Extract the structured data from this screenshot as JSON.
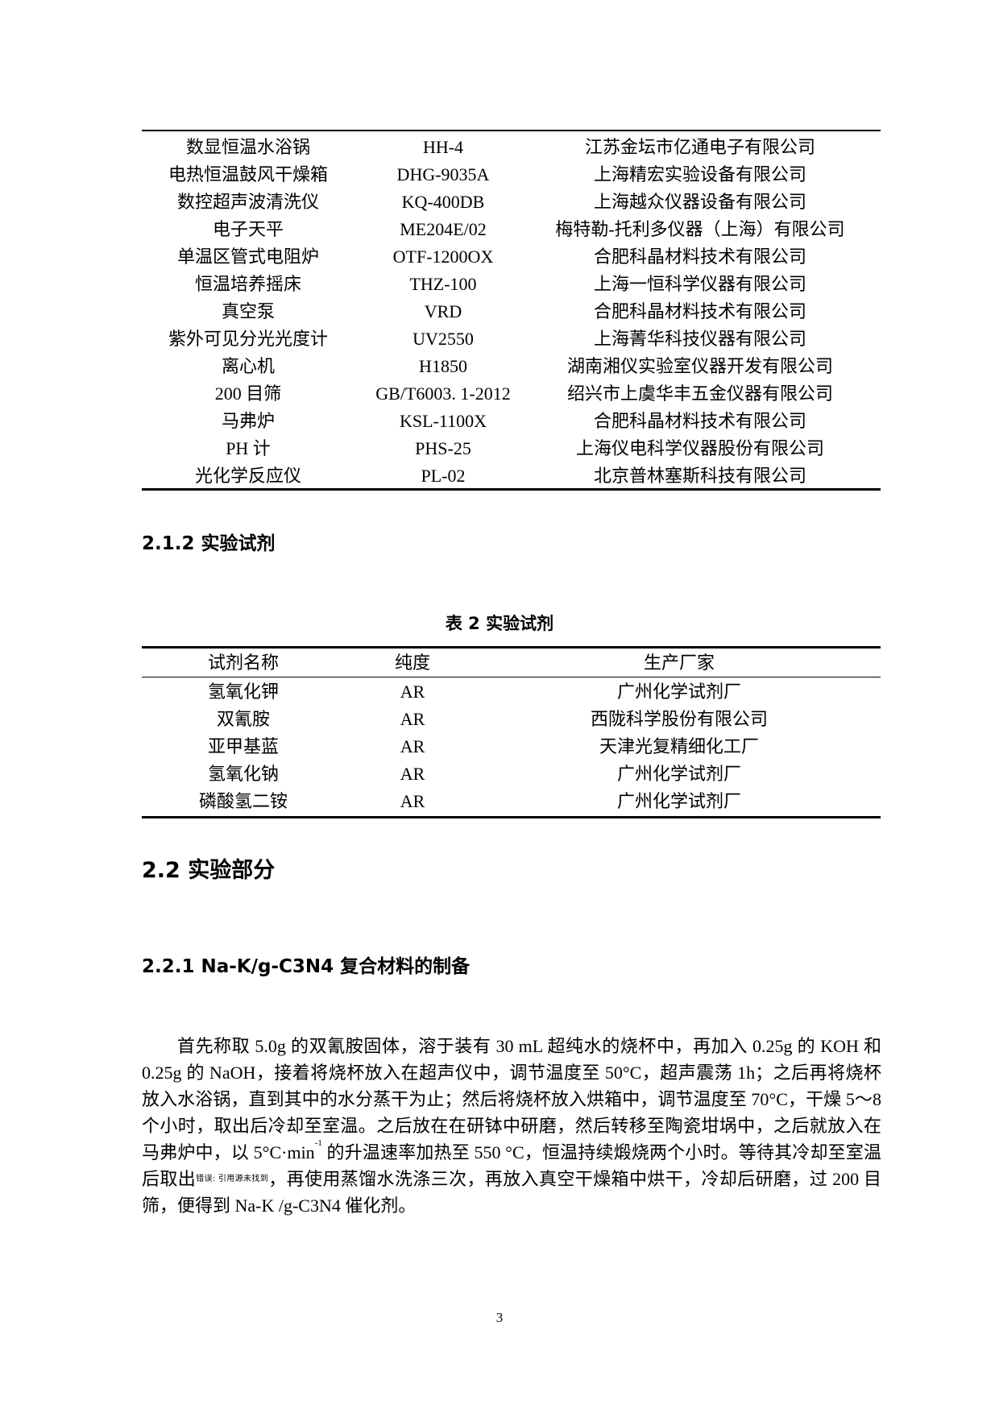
{
  "equipment_table": {
    "rows": [
      [
        "数显恒温水浴锅",
        "HH-4",
        "江苏金坛市亿通电子有限公司"
      ],
      [
        "电热恒温鼓风干燥箱",
        "DHG-9035A",
        "上海精宏实验设备有限公司"
      ],
      [
        "数控超声波清洗仪",
        "KQ-400DB",
        "上海越众仪器设备有限公司"
      ],
      [
        "电子天平",
        "ME204E/02",
        "梅特勒-托利多仪器（上海）有限公司"
      ],
      [
        "单温区管式电阻炉",
        "OTF-1200OX",
        "合肥科晶材料技术有限公司"
      ],
      [
        "恒温培养摇床",
        "THZ-100",
        "上海一恒科学仪器有限公司"
      ],
      [
        "真空泵",
        "VRD",
        "合肥科晶材料技术有限公司"
      ],
      [
        "紫外可见分光光度计",
        "UV2550",
        "上海菁华科技仪器有限公司"
      ],
      [
        "离心机",
        "H1850",
        "湖南湘仪实验室仪器开发有限公司"
      ],
      [
        "200 目筛",
        "GB/T6003. 1-2012",
        "绍兴市上虞华丰五金仪器有限公司"
      ],
      [
        "马弗炉",
        "KSL-1100X",
        "合肥科晶材料技术有限公司"
      ],
      [
        "PH 计",
        "PHS-25",
        "上海仪电科学仪器股份有限公司"
      ],
      [
        "光化学反应仪",
        "PL-02",
        "北京普林塞斯科技有限公司"
      ]
    ]
  },
  "heading_212": "2.1.2 实验试剂",
  "reagent_table": {
    "caption": "表  2  实验试剂",
    "headers": [
      "试剂名称",
      "纯度",
      "生产厂家"
    ],
    "rows": [
      [
        "氢氧化钾",
        "AR",
        "广州化学试剂厂"
      ],
      [
        "双氰胺",
        "AR",
        "西陇科学股份有限公司"
      ],
      [
        "亚甲基蓝",
        "AR",
        "天津光复精细化工厂"
      ],
      [
        "氢氧化钠",
        "AR",
        "广州化学试剂厂"
      ],
      [
        "磷酸氢二铵",
        "AR",
        "广州化学试剂厂"
      ]
    ]
  },
  "heading_22": "2.2 实验部分",
  "heading_221": "2.2.1 Na-K/g-C3N4 复合材料的制备",
  "paragraph": {
    "part1": "首先称取 5.0g 的双氰胺固体，溶于装有 30 mL 超纯水的烧杯中，再加入 0.25g 的 KOH 和 0.25g 的 NaOH，接着将烧杯放入在超声仪中，调节温度至 50°C，超声震荡 1h；之后再将烧杯放入水浴锅，直到其中的水分蒸干为止；然后将烧杯放入烘箱中，调节温度至 70°C，干燥 5～8 个小时，取出后冷却至室温。之后放在在研钵中研磨，然后转移至陶瓷坩埚中，之后就放入在马弗炉中，以 5°C·min",
    "sup": "-1",
    "part2": " 的升温速率加热至 550 °C，恒温持续煅烧两个小时。等待其冷却至室温后取出",
    "ref_error": "错误: 引用源未找到",
    "part3": "，再使用蒸馏水洗涤三次，再放入真空干燥箱中烘干，冷却后研磨，过 200 目筛，便得到 Na-K /g-C3N4 催化剂。"
  },
  "page_number": "3"
}
